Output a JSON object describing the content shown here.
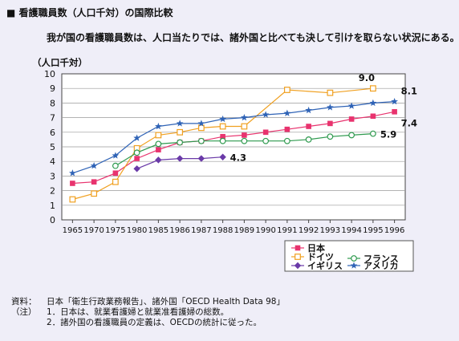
{
  "header": {
    "title": "■ 看護職員数（人口千対）の国際比較",
    "subtitle": "我が国の看護職員数は、人口当たりでは、諸外国と比べても決して引けを取らない状況にある。",
    "unit_label": "（人口千対）"
  },
  "chart_data": {
    "type": "line",
    "categories": [
      "1965",
      "1970",
      "1975",
      "1980",
      "1985",
      "1986",
      "1987",
      "1988",
      "1989",
      "1990",
      "1991",
      "1992",
      "1993",
      "1994",
      "1995",
      "1996"
    ],
    "ylim": [
      0,
      10
    ],
    "yticks": [
      "0",
      "1",
      "2",
      "3",
      "4",
      "5",
      "6",
      "7",
      "8",
      "9",
      "10"
    ],
    "grid": true,
    "legend_position": "bottom-right",
    "series": [
      {
        "name": "日本",
        "color": "#e8336e",
        "marker": "square-filled",
        "values": [
          2.5,
          2.6,
          3.2,
          4.2,
          4.8,
          5.3,
          5.4,
          5.7,
          5.8,
          6.0,
          6.2,
          6.4,
          6.6,
          6.9,
          7.1,
          7.4
        ]
      },
      {
        "name": "ドイツ",
        "color": "#f0a020",
        "marker": "square-open",
        "values": [
          1.4,
          1.8,
          2.6,
          4.9,
          5.8,
          6.0,
          6.3,
          6.4,
          6.4,
          null,
          8.9,
          null,
          8.7,
          null,
          9.0,
          null
        ]
      },
      {
        "name": "フランス",
        "color": "#2e9a4e",
        "marker": "circle-open",
        "values": [
          null,
          null,
          3.7,
          4.6,
          5.2,
          5.3,
          5.4,
          5.4,
          5.4,
          5.4,
          5.4,
          5.5,
          5.7,
          5.8,
          5.9,
          null
        ]
      },
      {
        "name": "イギリス",
        "color": "#6a3aa8",
        "marker": "diamond-filled",
        "values": [
          null,
          null,
          null,
          3.5,
          4.1,
          4.2,
          4.2,
          4.3,
          null,
          null,
          null,
          null,
          null,
          null,
          null,
          null
        ]
      },
      {
        "name": "アメリカ",
        "color": "#2f63b6",
        "marker": "star",
        "values": [
          3.2,
          3.7,
          4.4,
          5.6,
          6.4,
          6.6,
          6.6,
          6.9,
          7.0,
          7.2,
          7.3,
          7.5,
          7.7,
          7.8,
          8.0,
          8.1
        ]
      }
    ],
    "annotations": [
      {
        "text": "9.0",
        "series": "ドイツ",
        "category": "1995",
        "position": "above"
      },
      {
        "text": "8.1",
        "series": "アメリカ",
        "category": "1996",
        "position": "above-right"
      },
      {
        "text": "7.4",
        "series": "日本",
        "category": "1996",
        "position": "below"
      },
      {
        "text": "5.9",
        "series": "フランス",
        "category": "1995",
        "position": "right"
      },
      {
        "text": "4.3",
        "series": "イギリス",
        "category": "1988",
        "position": "right"
      }
    ]
  },
  "notes": {
    "source_label": "資料：",
    "source_text": "日本「衛生行政業務報告」、諸外国「OECD Health Data 98」",
    "notes_label": "（注）",
    "note1": "1．日本は、就業看護婦と就業准看護婦の総数。",
    "note2": "2．諸外国の看護職員の定義は、OECDの統計に従った。"
  }
}
